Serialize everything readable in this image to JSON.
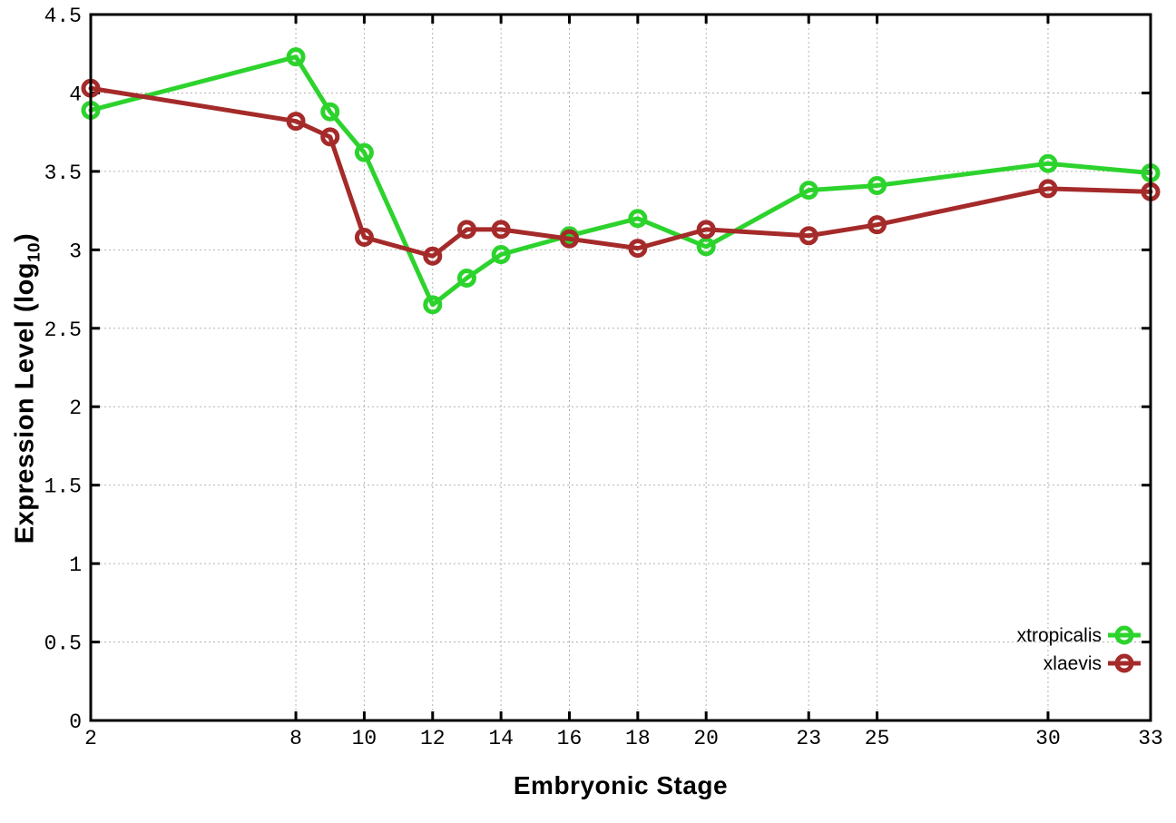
{
  "figure": {
    "background": "#ffffff",
    "xlabel": "Embryonic Stage",
    "ylabel_main": "Expression Level (log",
    "ylabel_sub": "10",
    "ylabel_close": ")"
  },
  "chart_data": {
    "type": "line",
    "title": "",
    "xlabel": "Embryonic Stage",
    "ylabel": "Expression Level (log10)",
    "x": [
      2,
      8,
      9,
      10,
      12,
      13,
      14,
      16,
      18,
      20,
      23,
      25,
      30,
      33
    ],
    "series": [
      {
        "name": "xtropicalis",
        "color": "#2dd32d",
        "values": [
          3.89,
          4.23,
          3.88,
          3.62,
          2.65,
          2.82,
          2.97,
          3.09,
          3.2,
          3.02,
          3.38,
          3.41,
          3.55,
          3.49
        ]
      },
      {
        "name": "xlaevis",
        "color": "#a52a2a",
        "values": [
          4.03,
          3.82,
          3.72,
          3.08,
          2.96,
          3.13,
          3.13,
          3.07,
          3.01,
          3.13,
          3.09,
          3.16,
          3.39,
          3.37
        ]
      }
    ],
    "x_ticks": [
      2,
      8,
      10,
      12,
      14,
      16,
      18,
      20,
      23,
      25,
      30,
      33
    ],
    "x_tick_labels": [
      "2",
      "8",
      "10",
      "12",
      "14",
      "16",
      "18",
      "20",
      "23",
      "25",
      "30",
      "33"
    ],
    "y_ticks": [
      0,
      0.5,
      1,
      1.5,
      2,
      2.5,
      3,
      3.5,
      4,
      4.5
    ],
    "y_tick_labels": [
      "0",
      "0.5",
      "1",
      "1.5",
      "2",
      "2.5",
      "3",
      "3.5",
      "4",
      "4.5"
    ],
    "xlim": [
      2,
      33
    ],
    "ylim": [
      0,
      4.5
    ],
    "grid": true,
    "grid_color": "#b2b2b2",
    "axis_color": "#000000",
    "text_color": "#000000",
    "legend_position": "bottom-right",
    "marker": "open-circle"
  }
}
